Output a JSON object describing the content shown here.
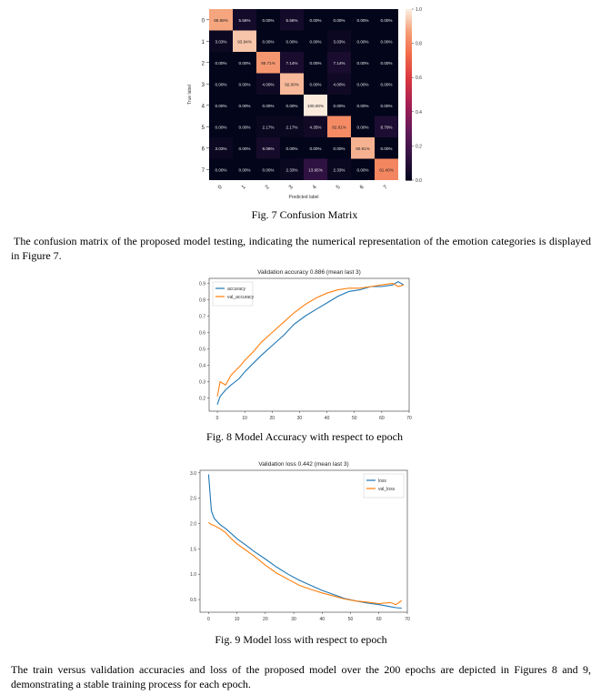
{
  "figures": {
    "fig7": {
      "caption": "Fig. 7 Confusion Matrix",
      "chart_data": {
        "type": "heatmap",
        "title": "",
        "xlabel": "Predicted label",
        "ylabel": "True label",
        "x_ticks": [
          "0",
          "1",
          "2",
          "3",
          "4",
          "5",
          "6",
          "7"
        ],
        "y_ticks": [
          "0",
          "1",
          "2",
          "3",
          "4",
          "5",
          "6",
          "7"
        ],
        "colorbar_ticks": [
          "1.0",
          "0.8",
          "0.6",
          "0.4",
          "0.2",
          "0.0"
        ],
        "matrix_labels": [
          [
            "88.89%",
            "5.56%",
            "0.00%",
            "5.56%",
            "0.00%",
            "0.00%",
            "0.00%",
            "0.00%"
          ],
          [
            "3.03%",
            "93.94%",
            "0.00%",
            "0.00%",
            "0.00%",
            "3.03%",
            "0.00%",
            "0.00%"
          ],
          [
            "0.00%",
            "0.00%",
            "85.71%",
            "7.14%",
            "0.00%",
            "7.14%",
            "0.00%",
            "0.00%"
          ],
          [
            "0.00%",
            "0.00%",
            "4.00%",
            "92.00%",
            "0.00%",
            "4.00%",
            "0.00%",
            "0.00%"
          ],
          [
            "0.00%",
            "0.00%",
            "0.00%",
            "0.00%",
            "100.00%",
            "0.00%",
            "0.00%",
            "0.00%"
          ],
          [
            "0.00%",
            "0.00%",
            "2.17%",
            "2.17%",
            "4.35%",
            "82.61%",
            "0.00%",
            "8.70%"
          ],
          [
            "3.03%",
            "0.00%",
            "6.06%",
            "0.00%",
            "0.00%",
            "0.00%",
            "90.91%",
            "0.00%"
          ],
          [
            "0.00%",
            "0.00%",
            "0.00%",
            "2.33%",
            "13.95%",
            "2.33%",
            "0.00%",
            "81.40%"
          ]
        ],
        "values": [
          [
            0.8889,
            0.0556,
            0,
            0.0556,
            0,
            0,
            0,
            0
          ],
          [
            0.0303,
            0.9394,
            0,
            0,
            0,
            0.0303,
            0,
            0
          ],
          [
            0,
            0,
            0.8571,
            0.0714,
            0,
            0.0714,
            0,
            0
          ],
          [
            0,
            0,
            0.04,
            0.92,
            0,
            0.04,
            0,
            0
          ],
          [
            0,
            0,
            0,
            0,
            1.0,
            0,
            0,
            0
          ],
          [
            0,
            0,
            0.0217,
            0.0217,
            0.0435,
            0.8261,
            0,
            0.087
          ],
          [
            0.0303,
            0,
            0.0606,
            0,
            0,
            0,
            0.9091,
            0
          ],
          [
            0,
            0,
            0,
            0.0233,
            0.1395,
            0.0233,
            0,
            0.814
          ]
        ],
        "vlim": [
          0,
          1.0
        ]
      }
    },
    "fig8": {
      "caption": "Fig. 8 Model Accuracy with respect to epoch",
      "chart_data": {
        "type": "line",
        "title": "Validation accuracy 0.886 (mean last 3)",
        "xlabel": "",
        "ylabel": "",
        "xlim": [
          -3,
          70
        ],
        "ylim": [
          0.12,
          0.93
        ],
        "x_ticks": [
          0,
          10,
          20,
          30,
          40,
          50,
          60,
          70
        ],
        "y_ticks": [
          0.2,
          0.3,
          0.4,
          0.5,
          0.6,
          0.7,
          0.8,
          0.9
        ],
        "legend_position": "top-left",
        "series": [
          {
            "name": "accuracy",
            "color": "#1f77b4",
            "x": [
              0,
              1,
              3,
              5,
              8,
              10,
              13,
              16,
              20,
              24,
              28,
              32,
              36,
              40,
              44,
              48,
              52,
              56,
              60,
              64,
              66,
              68
            ],
            "y": [
              0.16,
              0.21,
              0.25,
              0.28,
              0.32,
              0.36,
              0.41,
              0.46,
              0.52,
              0.58,
              0.65,
              0.7,
              0.74,
              0.78,
              0.82,
              0.85,
              0.86,
              0.88,
              0.88,
              0.89,
              0.91,
              0.89
            ]
          },
          {
            "name": "val_accuracy",
            "color": "#ff7f0e",
            "x": [
              0,
              1,
              3,
              5,
              8,
              10,
              13,
              16,
              20,
              24,
              28,
              32,
              36,
              40,
              44,
              48,
              52,
              56,
              60,
              64,
              66,
              68
            ],
            "y": [
              0.21,
              0.3,
              0.28,
              0.34,
              0.39,
              0.43,
              0.48,
              0.54,
              0.6,
              0.66,
              0.72,
              0.77,
              0.81,
              0.84,
              0.86,
              0.87,
              0.87,
              0.88,
              0.89,
              0.9,
              0.88,
              0.89
            ]
          }
        ]
      }
    },
    "fig9": {
      "caption": "Fig. 9 Model loss with respect to epoch",
      "chart_data": {
        "type": "line",
        "title": "Validation loss 0.442 (mean last 3)",
        "xlabel": "",
        "ylabel": "",
        "xlim": [
          -3,
          70
        ],
        "ylim": [
          0.25,
          3.05
        ],
        "x_ticks": [
          0,
          10,
          20,
          30,
          40,
          50,
          60,
          70
        ],
        "y_ticks": [
          0.5,
          1.0,
          1.5,
          2.0,
          2.5,
          3.0
        ],
        "legend_position": "top-right",
        "series": [
          {
            "name": "loss",
            "color": "#1f77b4",
            "x": [
              0,
              1,
              2,
              4,
              6,
              8,
              10,
              13,
              16,
              20,
              24,
              28,
              32,
              36,
              40,
              44,
              48,
              52,
              56,
              60,
              64,
              66,
              68
            ],
            "y": [
              2.97,
              2.25,
              2.1,
              1.98,
              1.9,
              1.8,
              1.7,
              1.58,
              1.45,
              1.3,
              1.14,
              1.0,
              0.88,
              0.78,
              0.68,
              0.6,
              0.52,
              0.47,
              0.43,
              0.4,
              0.36,
              0.34,
              0.33
            ]
          },
          {
            "name": "val_loss",
            "color": "#ff7f0e",
            "x": [
              0,
              1,
              2,
              4,
              6,
              8,
              10,
              13,
              16,
              20,
              24,
              28,
              32,
              36,
              40,
              44,
              48,
              52,
              56,
              60,
              64,
              66,
              68
            ],
            "y": [
              2.02,
              1.98,
              1.96,
              1.9,
              1.82,
              1.7,
              1.6,
              1.48,
              1.36,
              1.18,
              1.02,
              0.9,
              0.78,
              0.7,
              0.63,
              0.57,
              0.51,
              0.47,
              0.45,
              0.42,
              0.44,
              0.4,
              0.48
            ]
          }
        ]
      }
    }
  },
  "paragraphs": {
    "p1": "The confusion matrix of the proposed model testing, indicating the numerical representation of the emotion categories is displayed in Figure 7.",
    "p2": "The train versus validation accuracies and loss of the proposed model over the 200 epochs are depicted in Figures 8 and 9, demonstrating a stable training process for each epoch."
  }
}
